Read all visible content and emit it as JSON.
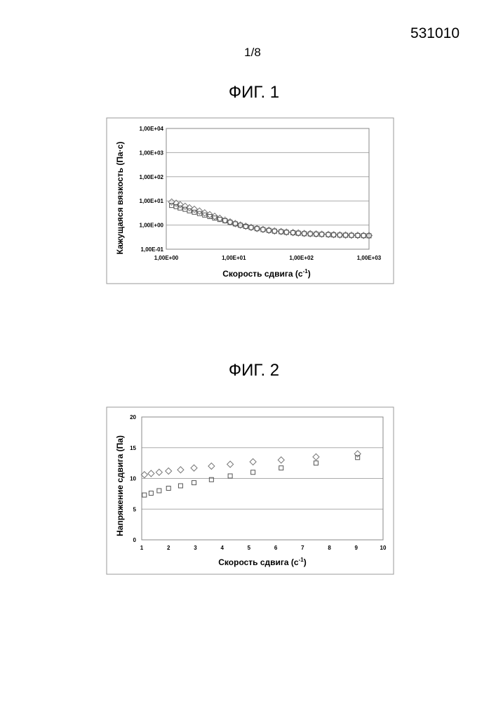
{
  "header": {
    "doc_number": "531010",
    "page": "1/8"
  },
  "figures": [
    {
      "title": "ФИГ. 1"
    },
    {
      "title": "ФИГ. 2"
    }
  ],
  "chart_data": [
    {
      "type": "scatter",
      "x_scale": "log",
      "y_scale": "log",
      "xlim": [
        1,
        1000
      ],
      "ylim": [
        0.1,
        10000
      ],
      "x_ticks": [
        "1,00E+00",
        "1,00E+01",
        "1,00E+02",
        "1,00E+03"
      ],
      "y_ticks": [
        "1,00E-01",
        "1,00E+00",
        "1,00E+01",
        "1,00E+02",
        "1,00E+03",
        "1,00E+04"
      ],
      "xlabel_main": "Скорость сдвига (с",
      "xlabel_sup": "-1",
      "xlabel_end": ")",
      "ylabel": "Кажущаяся вязкость (Па·с)",
      "grid": true,
      "series": [
        {
          "marker": "diamond",
          "x": [
            1.2,
            1.4,
            1.6,
            1.9,
            2.2,
            2.6,
            3.1,
            3.7,
            4.4,
            5.2,
            6.2,
            7.4,
            8.8,
            10.5,
            12.5,
            15,
            18,
            22,
            27,
            33,
            40,
            50,
            60,
            75,
            90,
            110,
            135,
            165,
            200,
            250,
            300,
            370,
            450,
            550,
            680,
            830,
            1000
          ],
          "y": [
            9.0,
            8.0,
            7.0,
            6.0,
            5.2,
            4.5,
            3.8,
            3.2,
            2.7,
            2.3,
            1.9,
            1.6,
            1.35,
            1.15,
            1.0,
            0.9,
            0.8,
            0.72,
            0.66,
            0.61,
            0.57,
            0.54,
            0.51,
            0.49,
            0.47,
            0.45,
            0.44,
            0.43,
            0.42,
            0.41,
            0.4,
            0.39,
            0.385,
            0.38,
            0.375,
            0.37,
            0.37
          ]
        },
        {
          "marker": "square",
          "x": [
            1.2,
            1.4,
            1.6,
            1.9,
            2.2,
            2.6,
            3.1,
            3.7,
            4.4,
            5.2,
            6.2,
            7.4,
            8.8,
            10.5,
            12.5,
            15,
            18,
            22,
            27,
            33,
            40,
            50,
            60,
            75,
            90,
            110,
            135,
            165,
            200,
            250,
            300,
            370,
            450,
            550,
            680,
            830,
            1000
          ],
          "y": [
            6.5,
            5.8,
            5.1,
            4.5,
            3.9,
            3.4,
            3.0,
            2.6,
            2.25,
            1.95,
            1.7,
            1.5,
            1.3,
            1.12,
            0.98,
            0.88,
            0.79,
            0.71,
            0.65,
            0.6,
            0.56,
            0.53,
            0.5,
            0.48,
            0.46,
            0.44,
            0.43,
            0.42,
            0.41,
            0.4,
            0.39,
            0.385,
            0.38,
            0.375,
            0.37,
            0.365,
            0.36
          ]
        }
      ]
    },
    {
      "type": "scatter",
      "xlim": [
        1,
        10
      ],
      "ylim": [
        0,
        20
      ],
      "x_ticks": [
        "1",
        "2",
        "3",
        "4",
        "5",
        "6",
        "7",
        "8",
        "9",
        "10"
      ],
      "y_ticks": [
        "0",
        "5",
        "10",
        "15",
        "20"
      ],
      "xlabel_main": "Скорость сдвига (с",
      "xlabel_sup": "-1",
      "xlabel_end": ")",
      "ylabel": "Напряжение сдвига (Па)",
      "grid": true,
      "series": [
        {
          "marker": "diamond",
          "x": [
            1.1,
            1.35,
            1.65,
            2.0,
            2.45,
            2.95,
            3.6,
            4.3,
            5.15,
            6.2,
            7.5,
            9.05
          ],
          "y": [
            10.6,
            10.8,
            11.0,
            11.2,
            11.4,
            11.7,
            12.0,
            12.3,
            12.7,
            13.0,
            13.5,
            14.0
          ]
        },
        {
          "marker": "square",
          "x": [
            1.1,
            1.35,
            1.65,
            2.0,
            2.45,
            2.95,
            3.6,
            4.3,
            5.15,
            6.2,
            7.5,
            9.05
          ],
          "y": [
            7.3,
            7.6,
            8.0,
            8.4,
            8.8,
            9.3,
            9.8,
            10.4,
            11.0,
            11.7,
            12.5,
            13.4
          ]
        }
      ]
    }
  ]
}
